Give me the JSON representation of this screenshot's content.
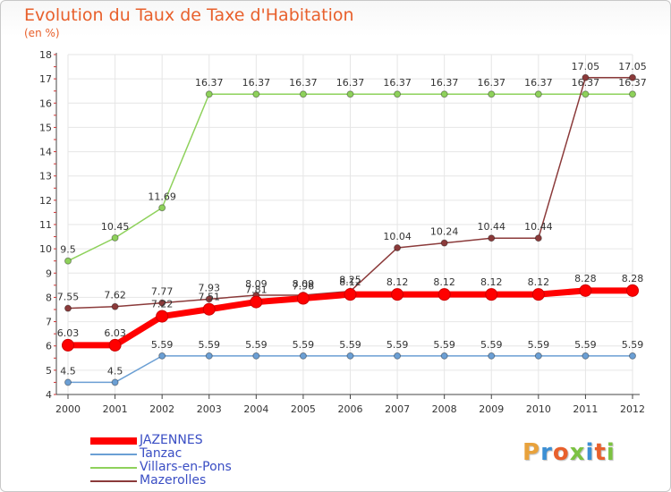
{
  "header": {
    "title": "Evolution du Taux de Taxe d'Habitation",
    "subtitle": "(en %)"
  },
  "logo": {
    "text": "Proxiti",
    "letter_colors": [
      "#e8a23c",
      "#3c8fd4",
      "#e8602c",
      "#7cc242",
      "#3c8fd4",
      "#e8602c",
      "#7cc242"
    ]
  },
  "chart_data": {
    "type": "line",
    "title": "Evolution du Taux de Taxe d'Habitation",
    "ylabel": "(en %)",
    "xlabel": "",
    "x": [
      "2000",
      "2001",
      "2002",
      "2003",
      "2004",
      "2005",
      "2006",
      "2007",
      "2008",
      "2009",
      "2010",
      "2011",
      "2012"
    ],
    "ylim": [
      4,
      18
    ],
    "yticks": [
      "4",
      "5",
      "6",
      "7",
      "8",
      "9",
      "10",
      "11",
      "12",
      "13",
      "14",
      "15",
      "16",
      "17",
      "18"
    ],
    "grid": true,
    "legend_position": "bottom-left",
    "series": [
      {
        "name": "JAZENNES",
        "color": "#ff0000",
        "values": [
          6.03,
          6.03,
          7.22,
          7.51,
          7.81,
          7.96,
          8.12,
          8.12,
          8.12,
          8.12,
          8.12,
          8.28,
          8.28
        ],
        "labels": [
          "6.03",
          "6.03",
          "7.22",
          "7.51",
          "7.81",
          "7.96",
          "8.12",
          "8.12",
          "8.12",
          "8.12",
          "8.12",
          "8.28",
          "8.28"
        ]
      },
      {
        "name": "Tanzac",
        "color": "#6b9fd4",
        "values": [
          4.5,
          4.5,
          5.59,
          5.59,
          5.59,
          5.59,
          5.59,
          5.59,
          5.59,
          5.59,
          5.59,
          5.59,
          5.59
        ],
        "labels": [
          "4.5",
          "4.5",
          "5.59",
          "5.59",
          "5.59",
          "5.59",
          "5.59",
          "5.59",
          "5.59",
          "5.59",
          "5.59",
          "5.59",
          "5.59"
        ]
      },
      {
        "name": "Villars-en-Pons",
        "color": "#8ed15b",
        "values": [
          9.5,
          10.45,
          11.69,
          16.37,
          16.37,
          16.37,
          16.37,
          16.37,
          16.37,
          16.37,
          16.37,
          16.37,
          16.37
        ],
        "labels": [
          "9.5",
          "10.45",
          "11.69",
          "16.37",
          "16.37",
          "16.37",
          "16.37",
          "16.37",
          "16.37",
          "16.37",
          "16.37",
          "16.37",
          "16.37"
        ]
      },
      {
        "name": "Mazerolles",
        "color": "#8b3a3a",
        "values": [
          7.55,
          7.62,
          7.77,
          7.93,
          8.09,
          8.09,
          8.25,
          10.04,
          10.24,
          10.44,
          10.44,
          17.05,
          17.05
        ],
        "labels": [
          "7.55",
          "7.62",
          "7.77",
          "7.93",
          "8.09",
          "8.09",
          "8.25",
          "10.04",
          "10.24",
          "10.44",
          "10.44",
          "17.05",
          "17.05"
        ]
      }
    ]
  }
}
